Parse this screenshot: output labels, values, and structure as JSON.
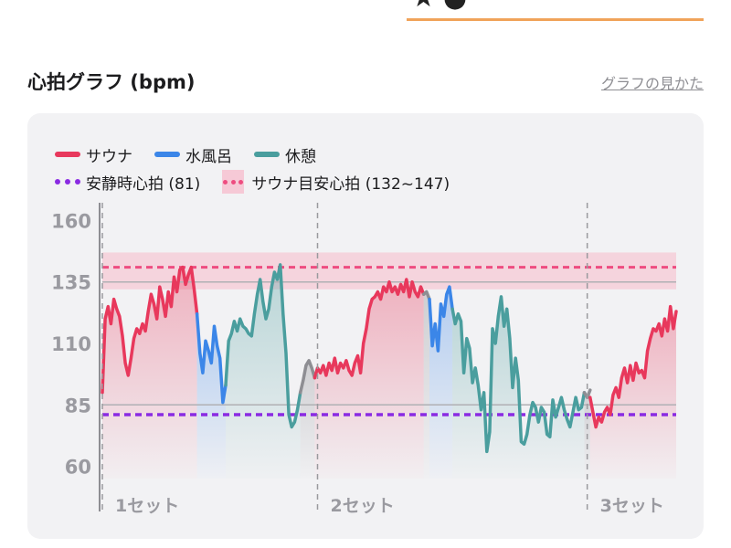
{
  "header": {
    "title": "心拍グラフ (bpm)",
    "help_link": "グラフの見かた"
  },
  "colors": {
    "sauna": "#e8385c",
    "water_bath": "#3b86e8",
    "rest": "#4a9e9e",
    "resting_hr": "#8a2be2",
    "sauna_zone_line": "#ee4c80",
    "sauna_zone_band": "#f6c9d6",
    "transition": "#8e8e93",
    "tab_underline": "#f0a35a"
  },
  "chart_data": {
    "type": "line",
    "legend": [
      {
        "key": "sauna",
        "label": "サウナ",
        "style": "line"
      },
      {
        "key": "water_bath",
        "label": "水風呂",
        "style": "line"
      },
      {
        "key": "rest",
        "label": "休憩",
        "style": "line"
      },
      {
        "key": "resting_hr",
        "label": "安静時心拍 (81)",
        "style": "dots"
      },
      {
        "key": "sauna_zone",
        "label": "サウナ目安心拍 (132~147)",
        "style": "zone"
      }
    ],
    "yticks": [
      160,
      135,
      110,
      85,
      60
    ],
    "ylim": [
      55,
      165
    ],
    "xlim": [
      0,
      100
    ],
    "reference_lines": [
      135,
      85
    ],
    "resting_hr": 81,
    "sauna_zone": [
      132,
      147
    ],
    "sauna_zone_line": 141,
    "set_markers": [
      {
        "x": 0,
        "label": "1セット"
      },
      {
        "x": 37.5,
        "label": "2セット"
      },
      {
        "x": 84.5,
        "label": "3セット"
      }
    ],
    "series": [
      {
        "key": "sauna",
        "segment": 1,
        "x": [
          0,
          0.5,
          1,
          1.5,
          2,
          2.5,
          3,
          3.5,
          4,
          4.5,
          5,
          5.5,
          6,
          6.5,
          7,
          7.5,
          8,
          8.5,
          9,
          9.5,
          10,
          10.5,
          11,
          11.5,
          12,
          12.5,
          13,
          13.5,
          14,
          14.5,
          15,
          15.5,
          16,
          16.5
        ],
        "y": [
          90,
          120,
          125,
          118,
          128,
          124,
          121,
          113,
          102,
          97,
          104,
          112,
          116,
          114,
          118,
          115,
          123,
          130,
          126,
          120,
          133,
          128,
          121,
          131,
          125,
          137,
          131,
          140,
          141,
          134,
          138,
          141,
          132,
          122
        ]
      },
      {
        "key": "water_bath",
        "segment": 1,
        "x": [
          16.5,
          17,
          17.5,
          18,
          18.5,
          19,
          19.5,
          20,
          20.5,
          21,
          21.5
        ],
        "y": [
          122,
          106,
          98,
          111,
          107,
          102,
          117,
          109,
          104,
          86,
          93
        ]
      },
      {
        "key": "rest",
        "segment": 1,
        "x": [
          21.5,
          22,
          22.5,
          23,
          23.5,
          24,
          24.5,
          25,
          25.5,
          26,
          26.5,
          27,
          27.5,
          28,
          28.5,
          29,
          29.5,
          30,
          30.5,
          31,
          31.5,
          32,
          32.5,
          33,
          33.5,
          34,
          34.5
        ],
        "y": [
          93,
          111,
          114,
          119,
          115,
          120,
          117,
          116,
          114,
          113,
          122,
          130,
          136,
          127,
          120,
          124,
          133,
          139,
          136,
          142,
          122,
          106,
          81,
          76,
          78,
          83,
          90
        ]
      },
      {
        "key": "transition",
        "segment": 1,
        "x": [
          34.5,
          35,
          35.5,
          36,
          36.5,
          37
        ],
        "y": [
          90,
          95,
          101,
          103,
          100,
          96
        ]
      },
      {
        "key": "sauna",
        "segment": 2,
        "x": [
          37,
          37.5,
          38,
          38.5,
          39,
          39.5,
          40,
          40.5,
          41,
          41.5,
          42,
          42.5,
          43,
          43.5,
          44,
          44.5,
          45,
          45.5,
          46,
          46.5,
          47,
          47.5,
          48,
          48.5,
          49,
          49.5,
          50,
          50.5,
          51,
          51.5,
          52,
          52.5,
          53,
          53.5,
          54,
          54.5,
          55,
          55.5,
          56
        ],
        "y": [
          96,
          100,
          98,
          101,
          97,
          102,
          99,
          104,
          98,
          102,
          100,
          103,
          99,
          97,
          102,
          105,
          98,
          110,
          116,
          124,
          128,
          129,
          131,
          128,
          133,
          131,
          135,
          131,
          133,
          130,
          134,
          131,
          136,
          129,
          135,
          131,
          129,
          133,
          130
        ]
      },
      {
        "key": "transition",
        "segment": 2,
        "x": [
          56,
          56.5,
          57
        ],
        "y": [
          130,
          131,
          128
        ]
      },
      {
        "key": "water_bath",
        "segment": 2,
        "x": [
          57,
          57.5,
          58,
          58.5,
          59,
          59.5,
          60,
          60.5,
          61
        ],
        "y": [
          128,
          109,
          118,
          107,
          126,
          121,
          130,
          133,
          124
        ]
      },
      {
        "key": "rest",
        "segment": 2,
        "x": [
          61,
          61.5,
          62,
          62.5,
          63,
          63.5,
          64,
          64.5,
          65,
          65.5,
          66,
          66.5,
          67,
          67.5,
          68,
          68.5,
          69,
          69.5,
          70,
          70.5,
          71,
          71.5,
          72,
          72.5,
          73,
          73.5,
          74,
          74.5,
          75,
          75.5,
          76,
          76.5,
          77,
          77.5,
          78,
          78.5,
          79,
          79.5,
          80,
          80.5,
          81,
          81.5,
          82,
          82.5,
          83,
          83.5,
          84
        ],
        "y": [
          124,
          118,
          122,
          119,
          98,
          112,
          108,
          94,
          100,
          93,
          83,
          90,
          66,
          74,
          116,
          110,
          121,
          129,
          117,
          124,
          112,
          92,
          104,
          95,
          70,
          69,
          73,
          81,
          86,
          84,
          78,
          84,
          82,
          73,
          72,
          87,
          80,
          84,
          88,
          83,
          79,
          76,
          82,
          88,
          83,
          84,
          90
        ]
      },
      {
        "key": "transition",
        "segment": 3,
        "x": [
          84,
          84.5,
          85
        ],
        "y": [
          90,
          88,
          91
        ]
      },
      {
        "key": "sauna",
        "segment": 3,
        "x": [
          85,
          85.5,
          86,
          86.5,
          87,
          87.5,
          88,
          88.5,
          89,
          89.5,
          90,
          90.5,
          91,
          91.5,
          92,
          92.5,
          93,
          93.5,
          94,
          94.5,
          95,
          95.5,
          96,
          96.5,
          97,
          97.5,
          98,
          98.5,
          99,
          99.5,
          100
        ],
        "y": [
          88,
          82,
          76,
          80,
          78,
          82,
          84,
          81,
          89,
          92,
          88,
          96,
          100,
          94,
          101,
          95,
          102,
          98,
          99,
          96,
          107,
          112,
          116,
          115,
          118,
          113,
          120,
          115,
          125,
          116,
          123
        ]
      }
    ]
  },
  "xaxis_labels_visible": [
    "1セット",
    "2セット",
    "3セット"
  ]
}
